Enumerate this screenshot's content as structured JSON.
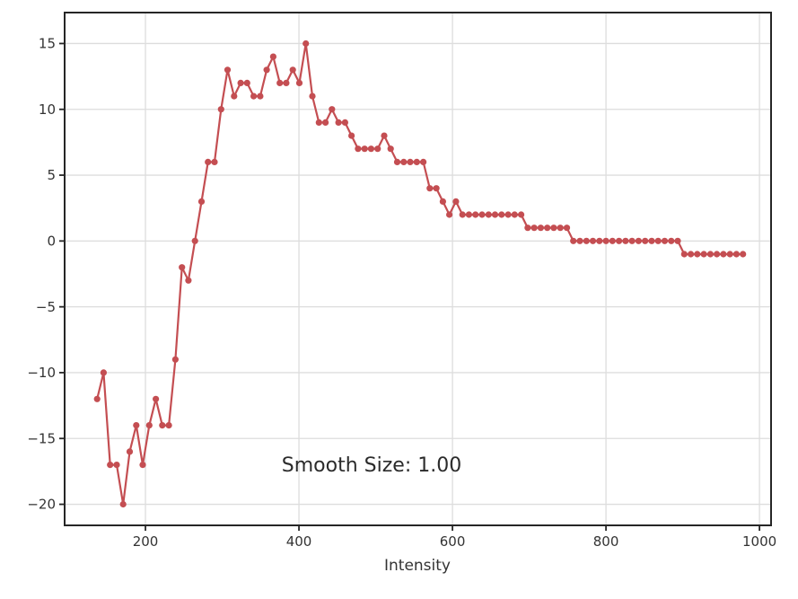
{
  "chart_data": {
    "type": "line",
    "title": "",
    "xlabel": "Intensity",
    "ylabel": "",
    "legend": "none",
    "grid": true,
    "line_color": "#c44e52",
    "grid_color": "#dddddd",
    "spine_color": "#262626",
    "tick_label_color": "#333333",
    "marker": "circle",
    "marker_radius": 3.6,
    "line_width": 2.2,
    "xlim": [
      94.7,
      1015.1
    ],
    "ylim": [
      -21.6,
      17.35
    ],
    "xticks": [
      200,
      400,
      600,
      800,
      1000
    ],
    "yticks": [
      15,
      10,
      5,
      0,
      -5,
      -10,
      -15,
      -20
    ],
    "annotation": {
      "text": "Smooth Size: 1.00",
      "x": 495,
      "y": -17.1
    },
    "x": [
      137,
      145.5,
      154,
      162.5,
      171,
      179.5,
      188,
      196.5,
      205,
      213.5,
      222,
      230.5,
      239,
      247.5,
      256,
      264.5,
      273,
      281.5,
      290,
      298.5,
      307,
      315.5,
      324,
      332.5,
      341,
      349.5,
      358,
      366.5,
      375,
      383.5,
      392,
      400.5,
      409,
      417.5,
      426,
      434.5,
      443,
      451.5,
      460,
      468.5,
      477,
      485.5,
      494,
      502.5,
      511,
      519.5,
      528,
      536.5,
      545,
      553.5,
      562,
      570.5,
      579,
      587.5,
      596,
      604.5,
      613,
      621.5,
      630,
      638.5,
      647,
      655.5,
      664,
      672.5,
      681,
      689.5,
      698,
      706.5,
      715,
      723.5,
      732,
      740.5,
      749,
      757.5,
      766,
      774.5,
      783,
      791.5,
      800,
      808.5,
      817,
      825.5,
      834,
      842.5,
      851,
      859.5,
      868,
      876.5,
      885,
      893.5,
      902,
      910.5,
      919,
      927.5,
      936,
      944.5,
      953,
      961.5,
      970,
      978.5
    ],
    "y": [
      -12,
      -10,
      -17,
      -17,
      -20,
      -16,
      -14,
      -17,
      -14,
      -12,
      -14,
      -14,
      -9,
      -2,
      -3,
      0,
      3,
      6,
      6,
      10,
      13,
      11,
      12,
      12,
      11,
      11,
      13,
      14,
      12,
      12,
      13,
      12,
      15,
      11,
      9,
      9,
      10,
      9,
      9,
      8,
      7,
      7,
      7,
      7,
      8,
      7,
      6,
      6,
      6,
      6,
      6,
      4,
      4,
      3,
      2,
      3,
      2,
      2,
      2,
      2,
      2,
      2,
      2,
      2,
      2,
      2,
      1,
      1,
      1,
      1,
      1,
      1,
      1,
      0,
      0,
      0,
      0,
      0,
      0,
      0,
      0,
      0,
      0,
      0,
      0,
      0,
      0,
      0,
      0,
      0,
      -1,
      -1,
      -1,
      -1,
      -1,
      -1,
      -1,
      -1,
      -1,
      -1
    ]
  }
}
